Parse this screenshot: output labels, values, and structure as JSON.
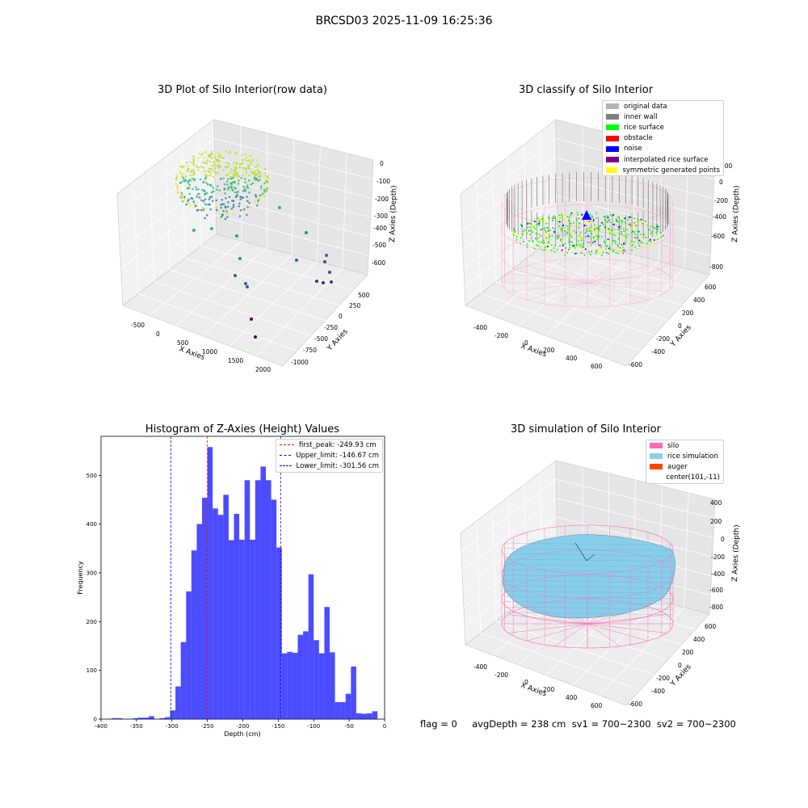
{
  "figure": {
    "title": "BRCSD03 2025-11-09 16:25:36",
    "footer_text": "flag = 0     avgDepth = 238 cm  sv1 = 700~2300  sv2 = 700~2300"
  },
  "panels": {
    "raw": {
      "title": "3D Plot of Silo Interior(row data)",
      "xlabel": "X Axies",
      "ylabel": "Y Axies",
      "zlabel": "Z Axies (Depth)",
      "xticks": [
        "-500",
        "0",
        "500",
        "1000",
        "1500",
        "2000"
      ],
      "yticks": [
        "-1000",
        "-750",
        "-500",
        "-250",
        "0",
        "250",
        "500"
      ],
      "zticks": [
        "0",
        "-100",
        "-200",
        "-300",
        "-400",
        "-500",
        "-600"
      ]
    },
    "classify": {
      "title": "3D classify of Silo Interior",
      "xlabel": "X Axies",
      "ylabel": "Y Axies",
      "zlabel": "Z Axies (Depth)",
      "xticks": [
        "-400",
        "-200",
        "0",
        "200",
        "400",
        "600"
      ],
      "yticks": [
        "-600",
        "-400",
        "-200",
        "0",
        "200",
        "400",
        "600"
      ],
      "zticks": [
        "200",
        "0",
        "-200",
        "-400",
        "-600",
        "-800"
      ],
      "legend": [
        {
          "label": "original data",
          "color": "#b3b3b3"
        },
        {
          "label": "inner wall",
          "color": "#808080"
        },
        {
          "label": "rice surface",
          "color": "#00ff00"
        },
        {
          "label": "obstacle",
          "color": "#ff0000"
        },
        {
          "label": "noise",
          "color": "#0000ff"
        },
        {
          "label": "interpolated rice surface",
          "color": "#800080"
        },
        {
          "label": "symmetric generated points",
          "color": "#ffff00"
        }
      ]
    },
    "simulation": {
      "title": "3D simulation of Silo Interior",
      "xlabel": "X Axies",
      "ylabel": "Y Axies",
      "zlabel": "Z Axies (Depth)",
      "xticks": [
        "-400",
        "-200",
        "0",
        "200",
        "400",
        "600"
      ],
      "yticks": [
        "-600",
        "-400",
        "-200",
        "0",
        "200",
        "400",
        "600"
      ],
      "zticks": [
        "400",
        "200",
        "0",
        "-200",
        "-400",
        "-600",
        "-800"
      ],
      "legend": [
        {
          "label": "silo",
          "color": "#ff69b4"
        },
        {
          "label": "rice simulation",
          "color": "#87ceeb"
        },
        {
          "label": "auger",
          "color": "#ff4500"
        },
        {
          "label": "center(101,-11)",
          "color": ""
        }
      ]
    }
  },
  "chart_data": {
    "type": "bar",
    "title": "Histogram of Z-Axies (Height) Values",
    "xlabel": "Depth (cm)",
    "ylabel": "Frequency",
    "xlim": [
      -400,
      0
    ],
    "ylim": [
      0,
      580
    ],
    "xticks": [
      -400,
      -350,
      -300,
      -250,
      -200,
      -150,
      -100,
      -50,
      0
    ],
    "yticks": [
      0,
      100,
      200,
      300,
      400,
      500
    ],
    "bar_color": "#0000ff",
    "bin_width": 7.5,
    "bins": [
      {
        "x0": -385,
        "count": 2
      },
      {
        "x0": -377.5,
        "count": 2
      },
      {
        "x0": -355,
        "count": 2
      },
      {
        "x0": -347.5,
        "count": 3
      },
      {
        "x0": -340,
        "count": 3
      },
      {
        "x0": -332.5,
        "count": 6
      },
      {
        "x0": -317.5,
        "count": 2
      },
      {
        "x0": -310,
        "count": 4
      },
      {
        "x0": -302.5,
        "count": 18
      },
      {
        "x0": -295,
        "count": 67
      },
      {
        "x0": -287.5,
        "count": 158
      },
      {
        "x0": -280,
        "count": 262
      },
      {
        "x0": -272.5,
        "count": 346
      },
      {
        "x0": -265,
        "count": 400
      },
      {
        "x0": -257.5,
        "count": 454
      },
      {
        "x0": -250,
        "count": 558
      },
      {
        "x0": -242.5,
        "count": 432
      },
      {
        "x0": -235,
        "count": 419
      },
      {
        "x0": -227.5,
        "count": 460
      },
      {
        "x0": -220,
        "count": 367
      },
      {
        "x0": -212.5,
        "count": 421
      },
      {
        "x0": -205,
        "count": 368
      },
      {
        "x0": -197.5,
        "count": 490
      },
      {
        "x0": -190,
        "count": 368
      },
      {
        "x0": -182.5,
        "count": 490
      },
      {
        "x0": -175,
        "count": 518
      },
      {
        "x0": -167.5,
        "count": 490
      },
      {
        "x0": -160,
        "count": 450
      },
      {
        "x0": -152.5,
        "count": 352
      },
      {
        "x0": -145,
        "count": 135
      },
      {
        "x0": -137.5,
        "count": 138
      },
      {
        "x0": -130,
        "count": 136
      },
      {
        "x0": -122.5,
        "count": 173
      },
      {
        "x0": -115,
        "count": 180
      },
      {
        "x0": -107.5,
        "count": 297
      },
      {
        "x0": -100,
        "count": 162
      },
      {
        "x0": -92.5,
        "count": 135
      },
      {
        "x0": -85,
        "count": 230
      },
      {
        "x0": -77.5,
        "count": 137
      },
      {
        "x0": -70,
        "count": 35
      },
      {
        "x0": -62.5,
        "count": 35
      },
      {
        "x0": -55,
        "count": 52
      },
      {
        "x0": -47.5,
        "count": 108
      },
      {
        "x0": -40,
        "count": 12
      },
      {
        "x0": -32.5,
        "count": 11
      },
      {
        "x0": -25,
        "count": 12
      },
      {
        "x0": -17.5,
        "count": 16
      }
    ],
    "vlines": [
      {
        "label": "first_peak: -249.93 cm",
        "x": -249.93,
        "color": "#ff0000"
      },
      {
        "label": "Upper_limit: -146.67 cm",
        "x": -146.67,
        "color": "#0000ff"
      },
      {
        "label": "Lower_limit: -301.56 cm",
        "x": -301.56,
        "color": "#0000ff"
      }
    ]
  }
}
